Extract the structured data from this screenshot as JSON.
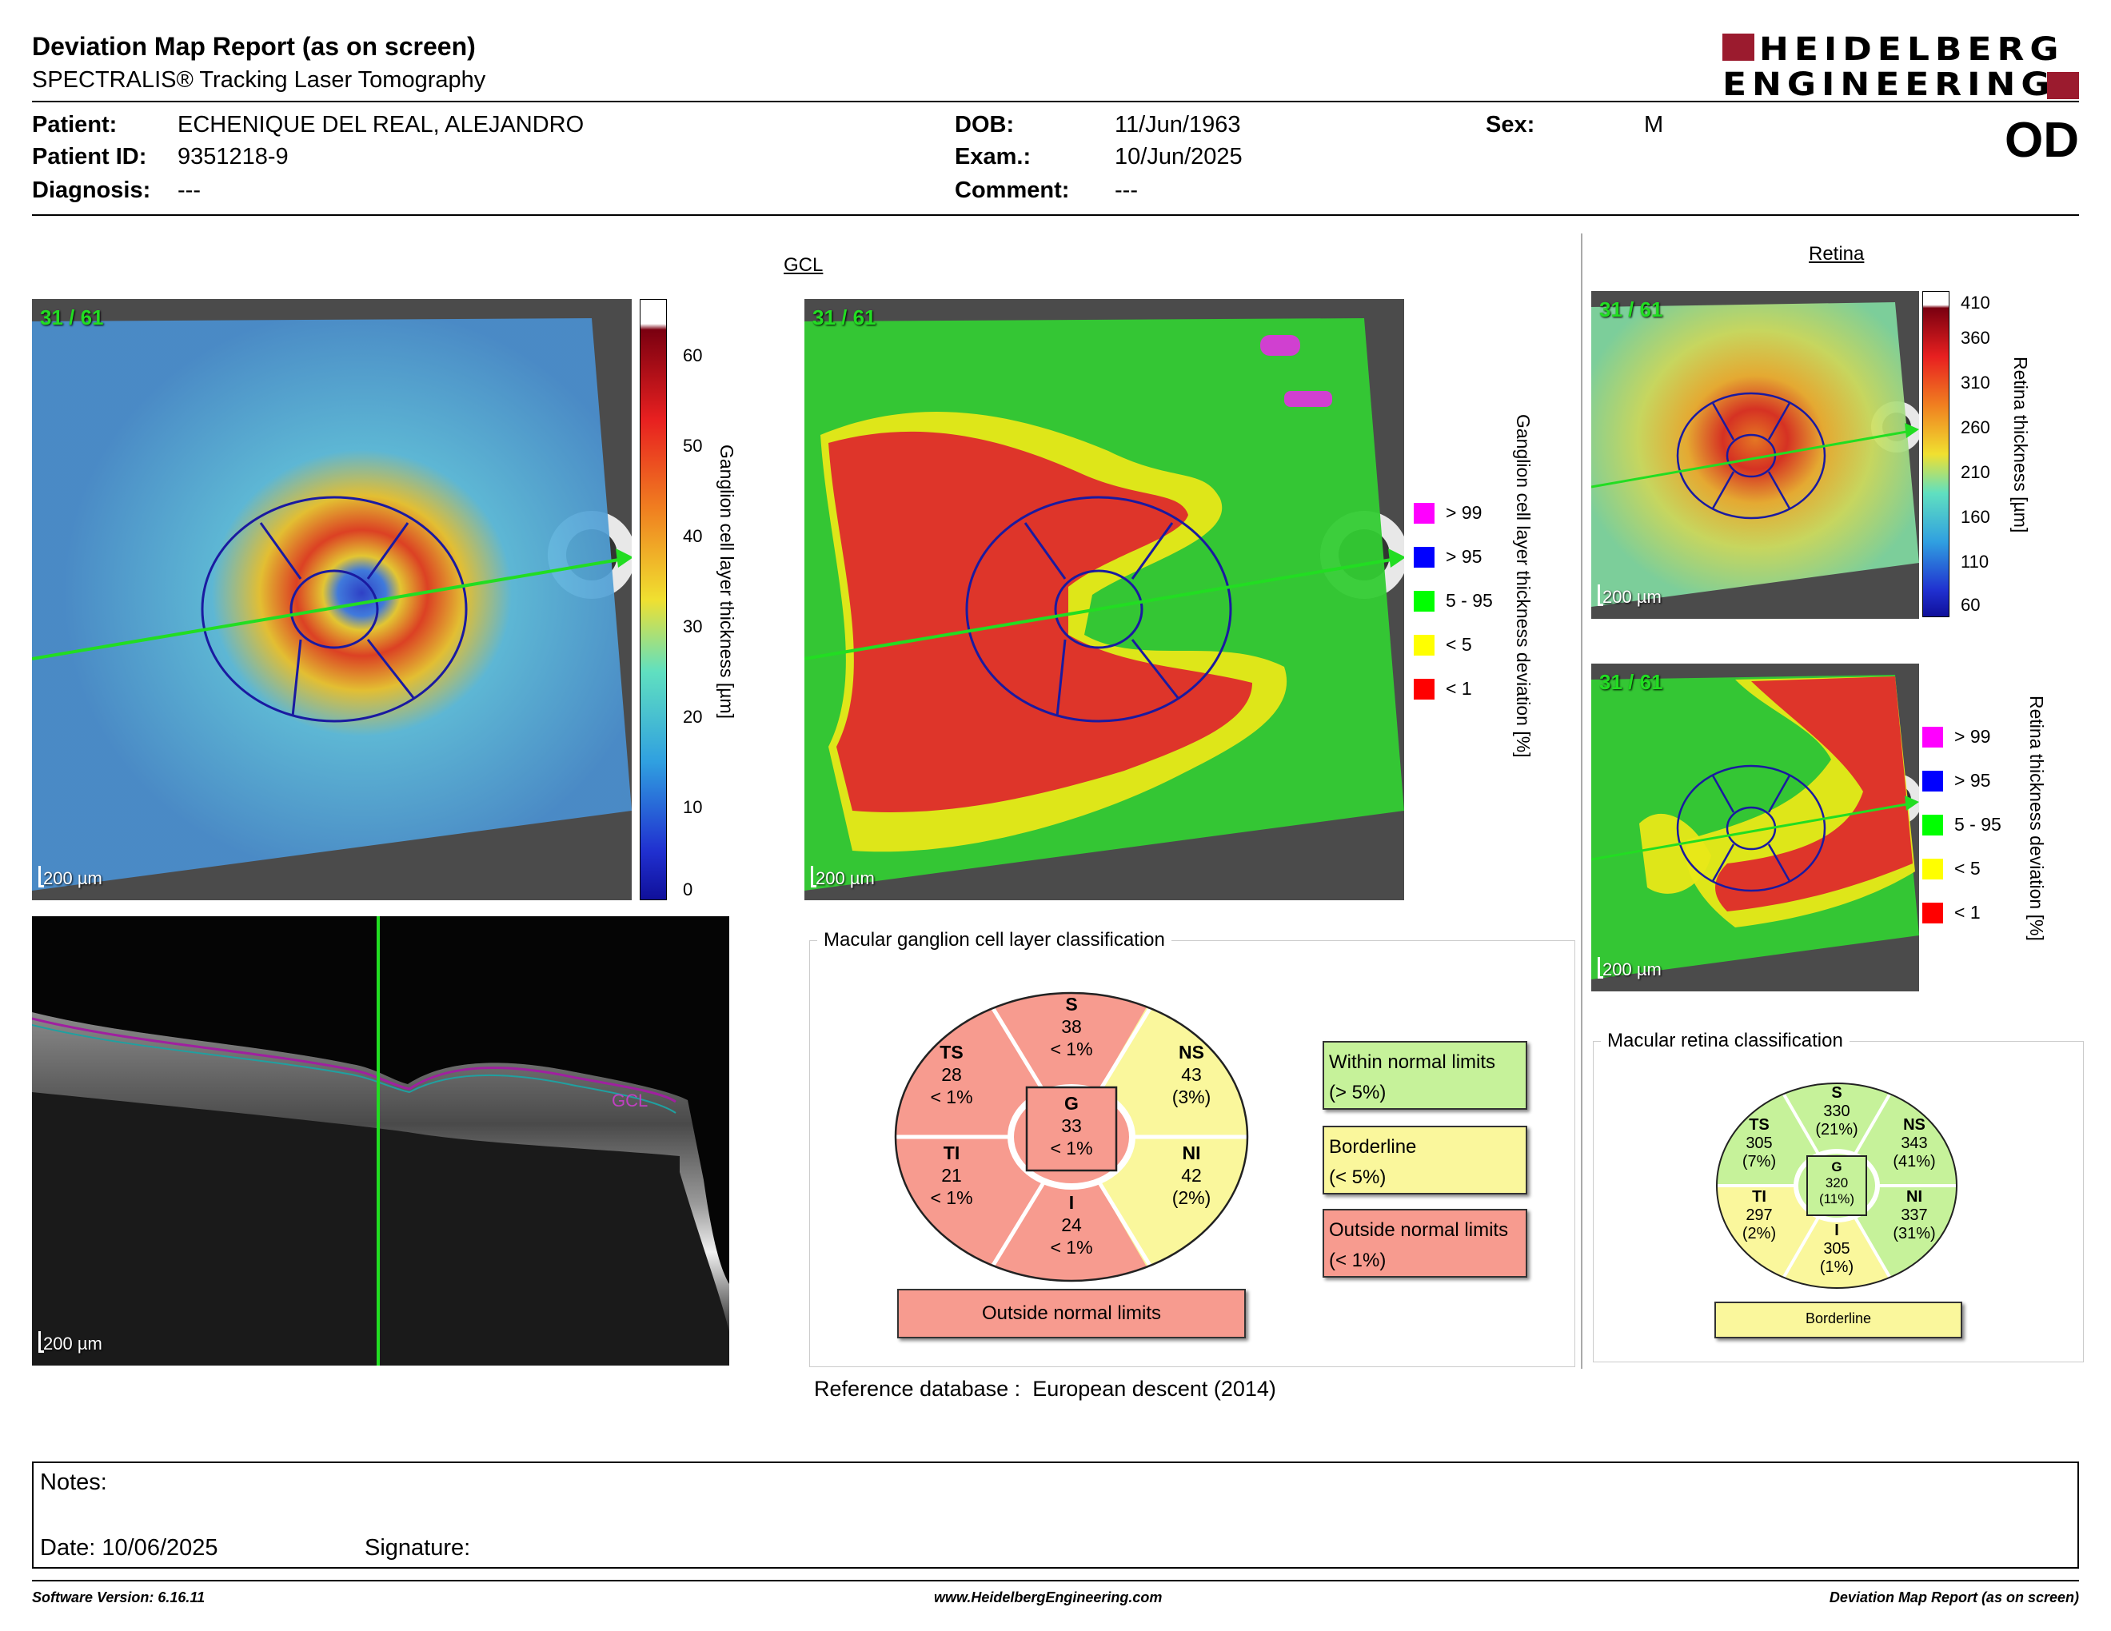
{
  "header": {
    "title": "Deviation Map Report (as on screen)",
    "subtitle": "SPECTRALIS® Tracking Laser Tomography",
    "logo_line1": "HEIDELBERG",
    "logo_line2": "ENGINEERING",
    "eye": "OD"
  },
  "patient": {
    "patient_label": "Patient:",
    "patient_value": "ECHENIQUE DEL REAL, ALEJANDRO",
    "id_label": "Patient ID:",
    "id_value": "9351218-9",
    "diagnosis_label": "Diagnosis:",
    "diagnosis_value": "---",
    "dob_label": "DOB:",
    "dob_value": "11/Jun/1963",
    "exam_label": "Exam.:",
    "exam_value": "10/Jun/2025",
    "comment_label": "Comment:",
    "comment_value": "---",
    "sex_label": "Sex:",
    "sex_value": "M"
  },
  "gcl": {
    "section_title": "GCL",
    "frame_tag": "31 / 61",
    "scale_label": "200 µm",
    "thickness_axis_label": "Ganglion cell layer thickness [µm]",
    "thickness_ticks": [
      "60",
      "50",
      "40",
      "30",
      "20",
      "10",
      "0"
    ],
    "deviation_axis_label": "Ganglion cell layer thickness deviation [%]",
    "oct_layer_label": "GCL",
    "classification_title": "Macular ganglion cell layer classification",
    "sectors": {
      "S": {
        "label": "S",
        "value": "38",
        "pct": "< 1%",
        "status": "outside"
      },
      "TS": {
        "label": "TS",
        "value": "28",
        "pct": "< 1%",
        "status": "outside"
      },
      "NS": {
        "label": "NS",
        "value": "43",
        "pct": "(3%)",
        "status": "borderline"
      },
      "G": {
        "label": "G",
        "value": "33",
        "pct": "< 1%",
        "status": "outside"
      },
      "TI": {
        "label": "TI",
        "value": "21",
        "pct": "< 1%",
        "status": "outside"
      },
      "NI": {
        "label": "NI",
        "value": "42",
        "pct": "(2%)",
        "status": "borderline"
      },
      "I": {
        "label": "I",
        "value": "24",
        "pct": "< 1%",
        "status": "outside"
      }
    },
    "overall": "Outside normal limits",
    "reference_label": "Reference database :",
    "reference_value": "European descent (2014)"
  },
  "legend": {
    "within_line1": "Within normal limits",
    "within_line2": "(> 5%)",
    "borderline_line1": "Borderline",
    "borderline_line2": "(< 5%)",
    "outside_line1": "Outside normal limits",
    "outside_line2": "(< 1%)"
  },
  "deviation_legend": [
    {
      "label": "> 99",
      "color": "#ff00ff"
    },
    {
      "label": "> 95",
      "color": "#0000ff"
    },
    {
      "label": "5 - 95",
      "color": "#00ff00"
    },
    {
      "label": "< 5",
      "color": "#ffff00"
    },
    {
      "label": "< 1",
      "color": "#ff0000"
    }
  ],
  "retina": {
    "section_title": "Retina",
    "frame_tag": "31 / 61",
    "scale_label": "200 µm",
    "thickness_axis_label": "Retina thickness [µm]",
    "thickness_ticks": [
      "410",
      "360",
      "310",
      "260",
      "210",
      "160",
      "110",
      "60"
    ],
    "deviation_axis_label": "Retina thickness deviation [%]",
    "classification_title": "Macular retina classification",
    "sectors": {
      "S": {
        "label": "S",
        "value": "330",
        "pct": "(21%)",
        "status": "within"
      },
      "TS": {
        "label": "TS",
        "value": "305",
        "pct": "(7%)",
        "status": "within"
      },
      "NS": {
        "label": "NS",
        "value": "343",
        "pct": "(41%)",
        "status": "within"
      },
      "G": {
        "label": "G",
        "value": "320",
        "pct": "(11%)",
        "status": "within"
      },
      "TI": {
        "label": "TI",
        "value": "297",
        "pct": "(2%)",
        "status": "borderline"
      },
      "NI": {
        "label": "NI",
        "value": "337",
        "pct": "(31%)",
        "status": "within"
      },
      "I": {
        "label": "I",
        "value": "305",
        "pct": "(1%)",
        "status": "borderline"
      }
    },
    "overall": "Borderline"
  },
  "colors": {
    "within": "#c6f29a",
    "borderline": "#faf79c",
    "outside": "#f79b8f",
    "logo_red": "#9b1b2e"
  },
  "notes": {
    "notes_label": "Notes:",
    "date_label": "Date: 10/06/2025",
    "signature_label": "Signature:"
  },
  "footer": {
    "version": "Software Version: 6.16.11",
    "website": "www.HeidelbergEngineering.com",
    "report_name": "Deviation Map Report (as on screen)"
  }
}
